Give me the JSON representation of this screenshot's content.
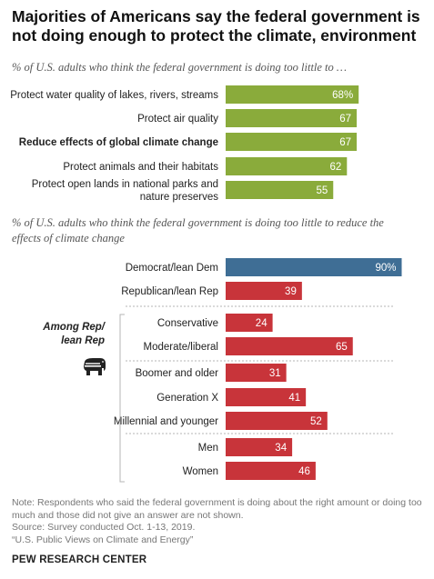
{
  "header": {
    "title": "Majorities of Americans say the federal government is not doing enough to protect the climate, environment"
  },
  "chart_data": [
    {
      "type": "bar",
      "orientation": "horizontal",
      "title": "% of U.S. adults who think the federal government is doing too little to …",
      "color": "#8aab3b",
      "categories": [
        "Protect water quality of lakes, rivers, streams",
        "Protect air quality",
        "Reduce effects of global climate change",
        "Protect animals and their habitats",
        "Protect open lands in national parks and nature preserves"
      ],
      "category_lines": [
        [
          "Protect water quality of lakes, rivers, streams"
        ],
        [
          "Protect air quality"
        ],
        [
          "Reduce effects of global climate change"
        ],
        [
          "Protect animals and their habitats"
        ],
        [
          "Protect open lands in national parks and",
          "nature preserves"
        ]
      ],
      "highlight_category": "Reduce effects of global climate change",
      "values": [
        68,
        67,
        67,
        62,
        55
      ],
      "value_labels": [
        "68%",
        "67",
        "67",
        "62",
        "55"
      ],
      "xlim": [
        0,
        100
      ]
    },
    {
      "type": "bar",
      "orientation": "horizontal",
      "title": "% of U.S. adults who think the federal government is doing too little to reduce the effects of climate change",
      "group_label_lines": [
        "Among Rep/",
        "lean Rep"
      ],
      "group_icon": "elephant-icon",
      "colors": {
        "dem": "#3f6e95",
        "rep": "#c8343a"
      },
      "categories": [
        "Democrat/lean Dem",
        "Republican/lean Rep",
        "Conservative",
        "Moderate/liberal",
        "Boomer and older",
        "Generation X",
        "Millennial and younger",
        "Men",
        "Women"
      ],
      "values": [
        90,
        39,
        24,
        65,
        31,
        41,
        52,
        34,
        46
      ],
      "value_labels": [
        "90%",
        "39",
        "24",
        "65",
        "31",
        "41",
        "52",
        "34",
        "46"
      ],
      "xlim": [
        0,
        100
      ]
    }
  ],
  "notes": {
    "note": "Note: Respondents who said the federal government is doing about the right amount or doing too much and those did not give an answer are not shown.",
    "source": "Source: Survey conducted Oct. 1-13, 2019.",
    "report": "“U.S. Public Views on Climate and Energy”"
  },
  "brand": "PEW RESEARCH CENTER"
}
